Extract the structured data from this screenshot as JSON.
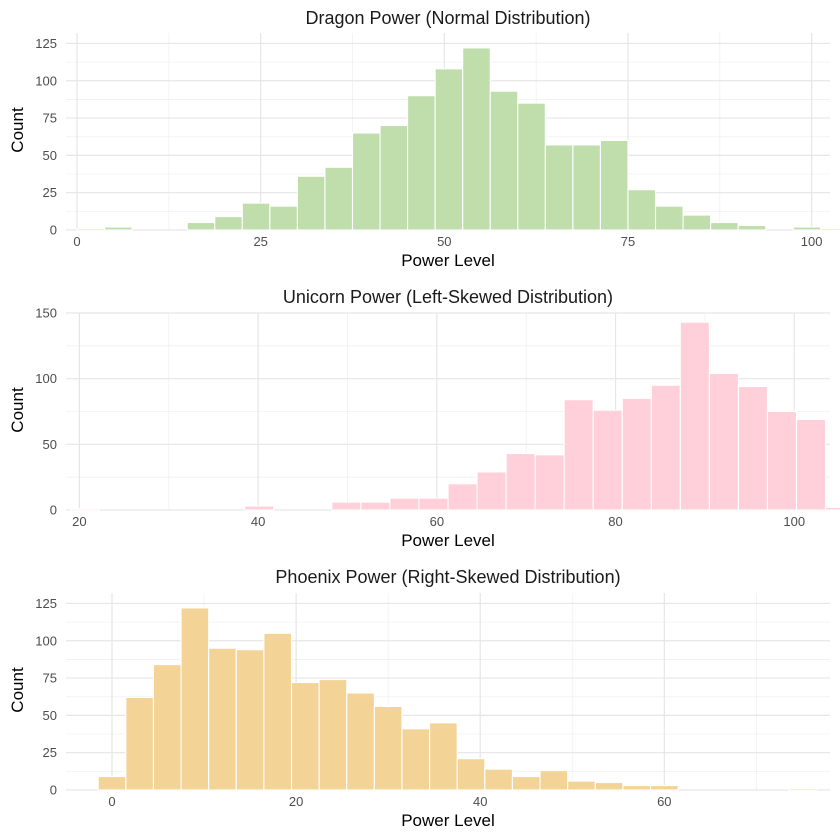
{
  "colors": {
    "dragon": "#bfdeab",
    "unicorn": "#ffd0da",
    "phoenix": "#f3d396",
    "grid_major": "#e6e6e6",
    "grid_minor": "#f0f0f0",
    "tick": "#4d4d4d"
  },
  "chart_data": [
    {
      "id": "dragon",
      "type": "bar",
      "title": "Dragon Power (Normal Distribution)",
      "xlabel": "Power Level",
      "ylabel": "Count",
      "xlim": [
        -1.5,
        102.5
      ],
      "ylim": [
        0,
        132
      ],
      "xticks": [
        0,
        25,
        50,
        75,
        100
      ],
      "yticks": [
        0,
        25,
        50,
        75,
        100,
        125
      ],
      "bin_start": 0.0,
      "bin_width": 3.75,
      "values": [
        1,
        2,
        0,
        0,
        5,
        9,
        18,
        16,
        36,
        42,
        65,
        70,
        90,
        108,
        122,
        93,
        85,
        57,
        57,
        60,
        27,
        16,
        10,
        5,
        3,
        0,
        2,
        1
      ]
    },
    {
      "id": "unicorn",
      "type": "bar",
      "title": "Unicorn Power (Left-Skewed Distribution)",
      "xlabel": "Power Level",
      "ylabel": "Count",
      "xlim": [
        18.5,
        104
      ],
      "ylim": [
        0,
        150
      ],
      "xticks": [
        20,
        40,
        60,
        80,
        100
      ],
      "yticks": [
        0,
        50,
        100,
        150
      ],
      "bin_start": 19.0,
      "bin_width": 3.25,
      "values": [
        1,
        0,
        0,
        0,
        0,
        0,
        3,
        0,
        0,
        6,
        6,
        9,
        9,
        20,
        29,
        43,
        42,
        84,
        76,
        85,
        95,
        143,
        104,
        94,
        75,
        69,
        2
      ]
    },
    {
      "id": "phoenix",
      "type": "bar",
      "title": "Phoenix Power (Right-Skewed Distribution)",
      "xlabel": "Power Level",
      "ylabel": "Count",
      "xlim": [
        -5,
        78
      ],
      "ylim": [
        0,
        132
      ],
      "xticks": [
        0,
        20,
        40,
        60
      ],
      "yticks": [
        0,
        25,
        50,
        75,
        100,
        125
      ],
      "bin_start": -1.5,
      "bin_width": 3.0,
      "values": [
        9,
        62,
        84,
        122,
        95,
        94,
        105,
        72,
        74,
        65,
        56,
        41,
        45,
        21,
        14,
        9,
        13,
        6,
        5,
        3,
        3,
        0,
        0,
        0,
        0,
        1
      ]
    }
  ]
}
